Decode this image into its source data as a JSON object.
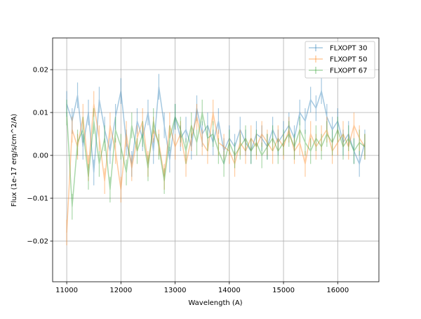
{
  "chart_data": {
    "type": "line",
    "title": "",
    "xlabel": "Wavelength (A)",
    "ylabel": "Flux (1e-17 erg/s/cm^2/A)",
    "xlim": [
      10740,
      16760
    ],
    "ylim": [
      -0.0295,
      0.0274
    ],
    "xticks": [
      11000,
      12000,
      13000,
      14000,
      15000,
      16000
    ],
    "xtick_labels": [
      "11000",
      "12000",
      "13000",
      "14000",
      "15000",
      "16000"
    ],
    "yticks": [
      -0.02,
      -0.01,
      0.0,
      0.01,
      0.02
    ],
    "ytick_labels": [
      "−0.02",
      "−0.01",
      "0.00",
      "0.01",
      "0.02"
    ],
    "grid": true,
    "legend_position": "top-right",
    "error": 0.003,
    "x": [
      11000,
      11100,
      11200,
      11300,
      11400,
      11500,
      11600,
      11700,
      11800,
      11900,
      12000,
      12100,
      12200,
      12300,
      12400,
      12500,
      12600,
      12700,
      12800,
      12900,
      13000,
      13100,
      13200,
      13300,
      13400,
      13500,
      13600,
      13700,
      13800,
      13900,
      14000,
      14100,
      14200,
      14300,
      14400,
      14500,
      14600,
      14700,
      14800,
      14900,
      15000,
      15100,
      15200,
      15300,
      15400,
      15500,
      15600,
      15700,
      15800,
      15900,
      16000,
      16100,
      16200,
      16300,
      16400,
      16500
    ],
    "series": [
      {
        "name": "FLXOPT 30",
        "color": "#1f77b4",
        "values": [
          0.012,
          0.008,
          0.014,
          0.002,
          0.01,
          -0.004,
          0.013,
          0.006,
          0.001,
          0.009,
          0.015,
          0.003,
          -0.002,
          0.008,
          0.004,
          0.01,
          0.001,
          0.016,
          0.007,
          -0.001,
          0.009,
          0.004,
          0.006,
          0.002,
          0.011,
          0.005,
          0.007,
          0.003,
          0.008,
          0.001,
          0.004,
          0.002,
          0.006,
          0.003,
          0.001,
          0.005,
          0.004,
          0.002,
          0.006,
          0.003,
          0.005,
          0.007,
          0.004,
          0.01,
          0.008,
          0.013,
          0.011,
          0.015,
          0.009,
          0.006,
          0.008,
          0.003,
          0.005,
          0.001,
          -0.002,
          0.003
        ]
      },
      {
        "name": "FLXOPT 50",
        "color": "#ff7f0e",
        "values": [
          -0.018,
          0.006,
          0.002,
          0.009,
          -0.003,
          0.012,
          0.004,
          -0.006,
          0.007,
          0.001,
          -0.008,
          0.005,
          -0.003,
          0.004,
          0.008,
          -0.002,
          0.006,
          0.003,
          -0.005,
          0.007,
          0.002,
          0.005,
          -0.002,
          0.004,
          0.009,
          0.003,
          0.001,
          0.01,
          0.003,
          0.002,
          0.001,
          -0.002,
          0.003,
          0.001,
          0.004,
          0.002,
          0.005,
          0.003,
          0.001,
          0.004,
          0.002,
          0.006,
          0.001,
          0.003,
          -0.002,
          0.005,
          0.002,
          0.004,
          0.006,
          0.001,
          0.003,
          0.005,
          0.002,
          0.007,
          0.004,
          0.002
        ]
      },
      {
        "name": "FLXOPT 67",
        "color": "#2ca02c",
        "values": [
          0.01,
          -0.012,
          0.003,
          0.006,
          -0.005,
          0.008,
          -0.002,
          0.004,
          -0.008,
          0.006,
          0.002,
          -0.004,
          0.007,
          0.001,
          0.005,
          -0.003,
          0.008,
          0.002,
          -0.006,
          0.004,
          0.009,
          0.006,
          0.001,
          0.007,
          0.003,
          0.01,
          0.004,
          0.005,
          0.001,
          -0.002,
          0.003,
          0.0,
          0.002,
          0.004,
          0.001,
          0.003,
          0.0,
          0.002,
          0.004,
          0.001,
          0.003,
          0.005,
          0.002,
          0.006,
          0.003,
          0.001,
          0.004,
          0.002,
          0.005,
          0.003,
          0.006,
          0.002,
          0.004,
          0.001,
          0.003,
          0.002
        ]
      }
    ]
  }
}
